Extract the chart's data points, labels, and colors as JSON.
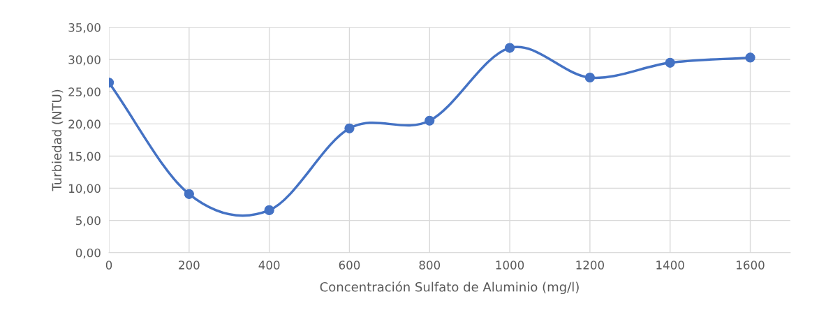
{
  "chart_data": {
    "type": "line",
    "xlabel": "Concentración Sulfato de Aluminio (mg/l)",
    "ylabel": "Turbiedad (NTU)",
    "x": [
      0,
      200,
      400,
      600,
      800,
      1000,
      1200,
      1400,
      1600
    ],
    "series": [
      {
        "color": "#4472c4",
        "values": [
          26.4,
          9.1,
          6.6,
          19.3,
          20.5,
          31.8,
          27.2,
          29.5,
          30.3
        ]
      }
    ],
    "xlim": [
      0,
      1700
    ],
    "xticks": [
      0,
      200,
      400,
      600,
      800,
      1000,
      1200,
      1400,
      1600
    ],
    "ylim": [
      0,
      35
    ],
    "yticks": [
      {
        "value": 0,
        "label": "0,00"
      },
      {
        "value": 5,
        "label": "5,00"
      },
      {
        "value": 10,
        "label": "10,00"
      },
      {
        "value": 15,
        "label": "15,00"
      },
      {
        "value": 20,
        "label": "20,00"
      },
      {
        "value": 25,
        "label": "25,00"
      },
      {
        "value": 30,
        "label": "30,00"
      },
      {
        "value": 35,
        "label": "35,00"
      }
    ],
    "grid": true,
    "marker": "circle",
    "line_style": "solid",
    "legend": false
  }
}
